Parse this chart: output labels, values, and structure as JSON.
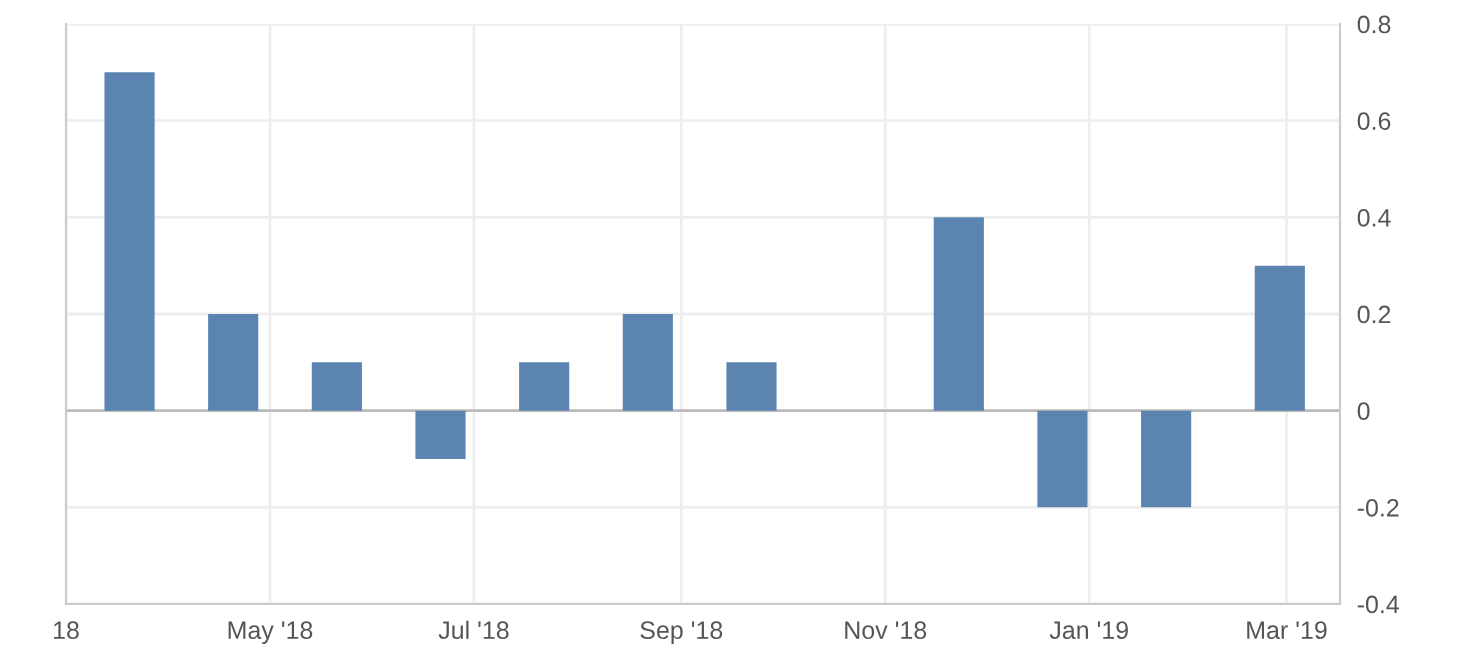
{
  "chart_data": {
    "type": "bar",
    "x": [
      "2018-03-20",
      "2018-04-20",
      "2018-05-21",
      "2018-06-21",
      "2018-07-22",
      "2018-08-22",
      "2018-09-22",
      "2018-10-23",
      "2018-11-23",
      "2018-12-24",
      "2019-01-24",
      "2019-02-27"
    ],
    "series": [
      {
        "color": "#5b84b1",
        "values": [
          0.7,
          0.2,
          0.1,
          -0.1,
          0.1,
          0.2,
          0.1,
          0,
          0.4,
          -0.2,
          -0.2,
          0.3
        ]
      }
    ],
    "xlim": [
      "2018-03-01",
      "2019-03-17"
    ],
    "xticks": [
      {
        "value": "2018-03-01",
        "label": "18"
      },
      {
        "value": "2018-05-01",
        "label": "May '18"
      },
      {
        "value": "2018-07-01",
        "label": "Jul '18"
      },
      {
        "value": "2018-09-01",
        "label": "Sep '18"
      },
      {
        "value": "2018-11-01",
        "label": "Nov '18"
      },
      {
        "value": "2019-01-01",
        "label": "Jan '19"
      },
      {
        "value": "2019-03-01",
        "label": "Mar '19"
      }
    ],
    "ylim": [
      -0.4,
      0.8
    ],
    "yticks": [
      {
        "value": -0.4,
        "label": "-0.4"
      },
      {
        "value": -0.2,
        "label": "-0.2"
      },
      0,
      {
        "value": 0.2,
        "label": "0.2"
      },
      {
        "value": 0.4,
        "label": "0.4"
      },
      {
        "value": 0.6,
        "label": "0.6"
      },
      {
        "value": 0.8,
        "label": "0.8"
      }
    ],
    "grid": true,
    "legend": false
  }
}
